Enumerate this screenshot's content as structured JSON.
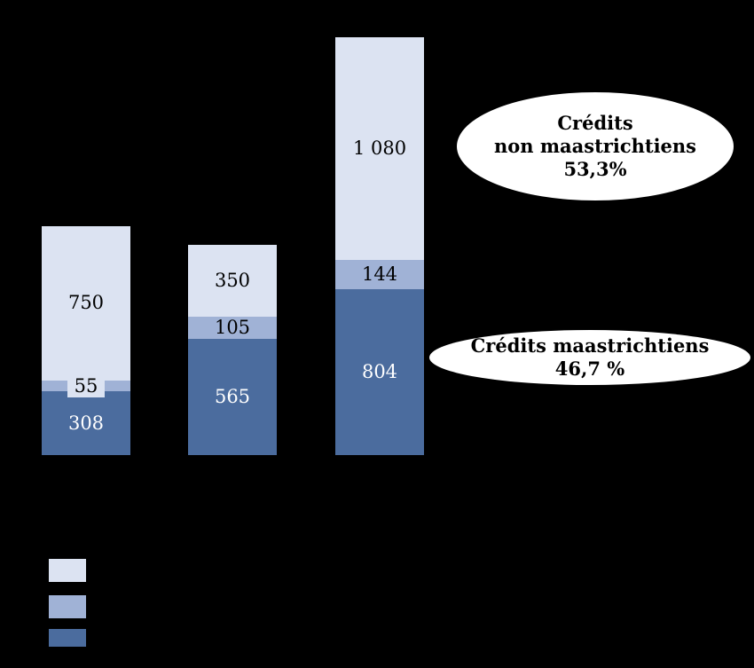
{
  "background_color": "#000000",
  "chart_data": {
    "type": "bar",
    "stacked": true,
    "categories": [
      "",
      "",
      ""
    ],
    "series": [
      {
        "name": "segment-light",
        "color": "#dce3f2",
        "label_color": "#000000",
        "values": [
          750,
          350,
          1080
        ],
        "labels": [
          "750",
          "350",
          "1 080"
        ]
      },
      {
        "name": "segment-medium",
        "color": "#a0b2d6",
        "label_color": "#000000",
        "values": [
          55,
          105,
          144
        ],
        "labels": [
          "55",
          "105",
          "144"
        ]
      },
      {
        "name": "segment-dark",
        "color": "#4b6c9e",
        "label_color": "#ffffff",
        "values": [
          308,
          565,
          804
        ],
        "labels": [
          "308",
          "565",
          "804"
        ]
      }
    ],
    "totals": [
      1113,
      1020,
      2028
    ],
    "annotations": [
      {
        "name": "credits-non-maastrichtiens",
        "lines": [
          "Crédits",
          "non maastrichtiens",
          "53,3%"
        ]
      },
      {
        "name": "credits-maastrichtiens",
        "lines": [
          "Crédits maastrichtiens",
          "46,7 %"
        ]
      }
    ],
    "legend": {
      "labels_visible": false
    }
  }
}
